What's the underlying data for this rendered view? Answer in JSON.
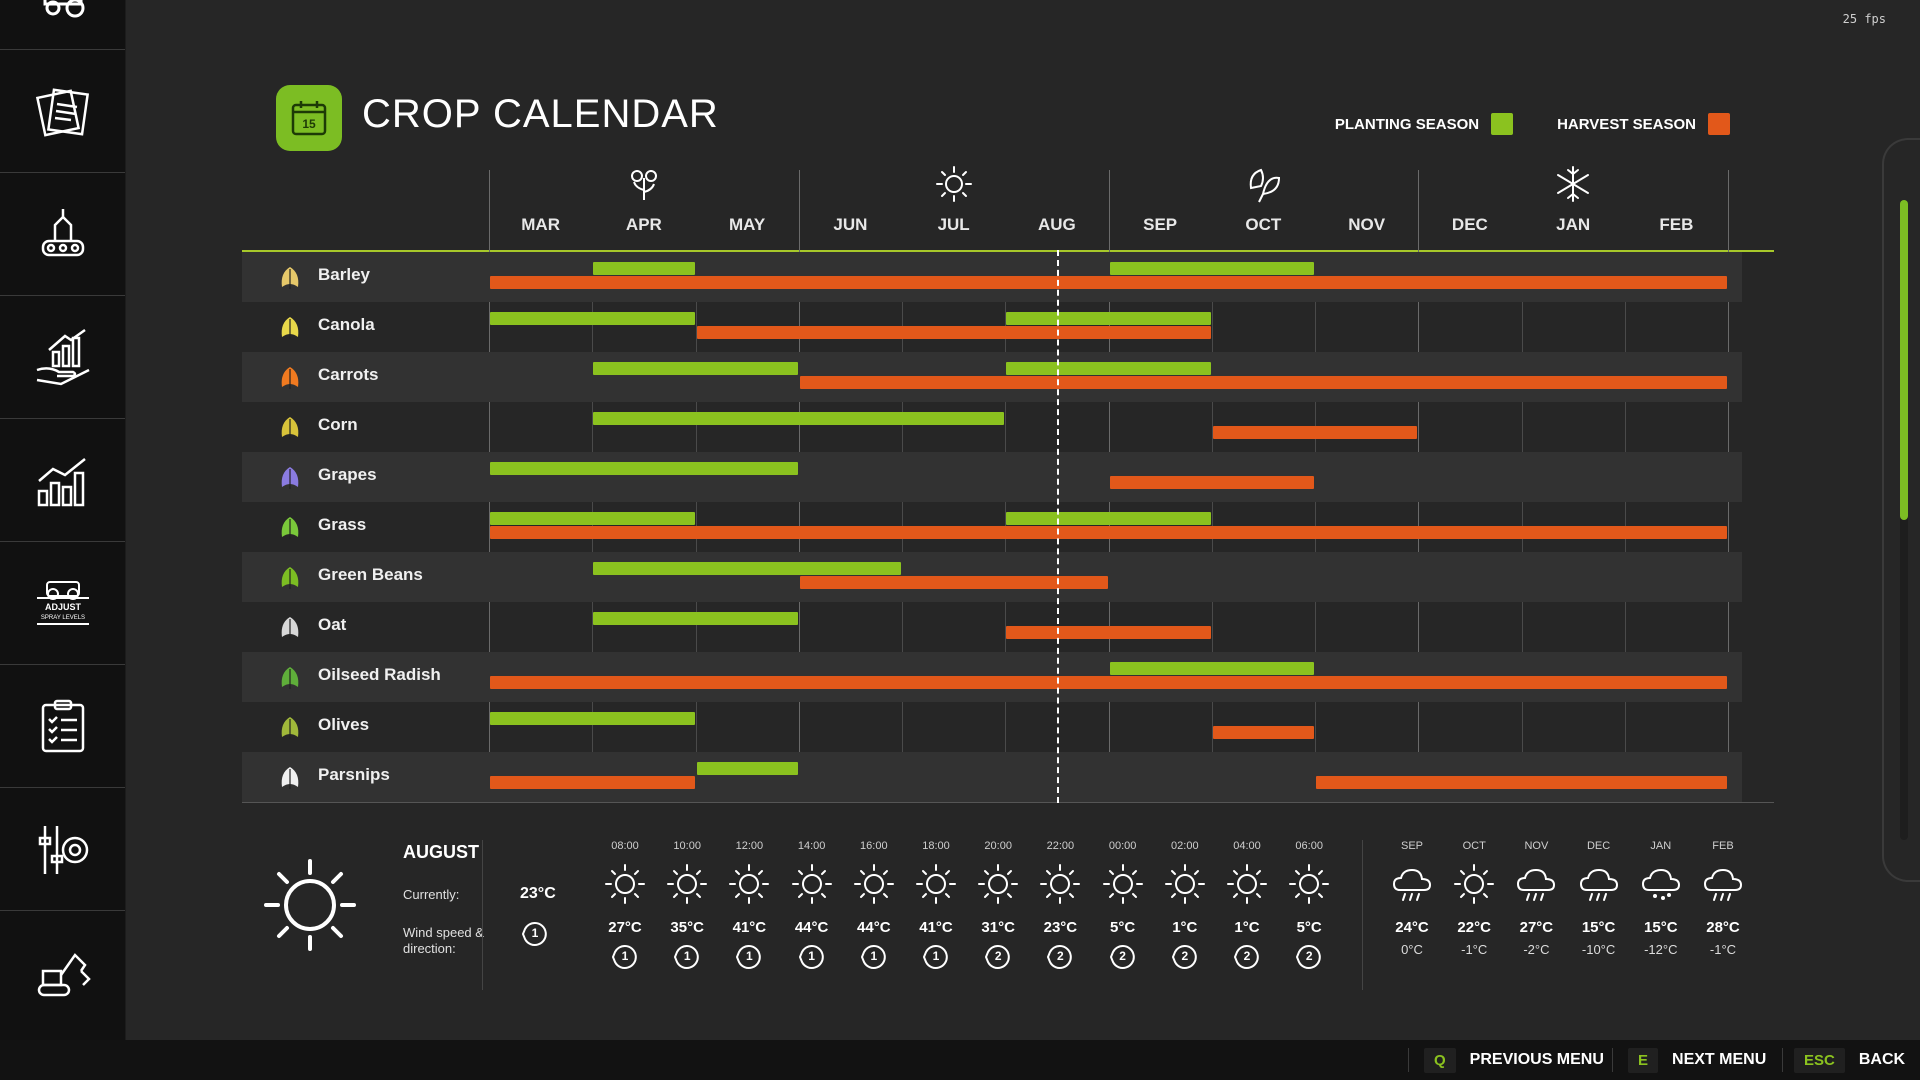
{
  "fps": "25 fps",
  "sidebar": {
    "items": [
      {
        "icon": "tractor-logo-icon"
      },
      {
        "icon": "contracts-icon"
      },
      {
        "icon": "production-icon"
      },
      {
        "icon": "finance-icon"
      },
      {
        "icon": "statistics-icon"
      },
      {
        "icon": "adjust-spray-levels-icon",
        "text": "ADJUST SPRAY LEVELS"
      },
      {
        "icon": "checklist-icon"
      },
      {
        "icon": "settings-icon"
      },
      {
        "icon": "construction-icon"
      }
    ]
  },
  "header": {
    "title": "CROP CALENDAR",
    "calendar_day": "15",
    "legend": {
      "planting": "PLANTING SEASON",
      "harvest": "HARVEST SEASON"
    }
  },
  "colors": {
    "planting": "#8bc21f",
    "harvest": "#e2581a",
    "accent": "#7cbd23"
  },
  "seasons": [
    "spring-flower-icon",
    "summer-sun-icon",
    "autumn-leaf-icon",
    "winter-snowflake-icon"
  ],
  "months": [
    "MAR",
    "APR",
    "MAY",
    "JUN",
    "JUL",
    "AUG",
    "SEP",
    "OCT",
    "NOV",
    "DEC",
    "JAN",
    "FEB"
  ],
  "current_month_fraction": 5.5,
  "crops": [
    {
      "name": "Barley",
      "icon": "barley-icon",
      "planting": [
        [
          1,
          2
        ],
        [
          6,
          8
        ]
      ],
      "harvest": [
        [
          0,
          12
        ]
      ]
    },
    {
      "name": "Canola",
      "icon": "canola-icon",
      "planting": [
        [
          0,
          2
        ],
        [
          5,
          7
        ]
      ],
      "harvest": [
        [
          2,
          7
        ]
      ]
    },
    {
      "name": "Carrots",
      "icon": "carrot-icon",
      "planting": [
        [
          1,
          3
        ],
        [
          5,
          7
        ]
      ],
      "harvest": [
        [
          3,
          12
        ]
      ]
    },
    {
      "name": "Corn",
      "icon": "corn-icon",
      "planting": [
        [
          1,
          5
        ]
      ],
      "harvest": [
        [
          7,
          9
        ]
      ]
    },
    {
      "name": "Grapes",
      "icon": "grapes-icon",
      "planting": [
        [
          0,
          3
        ]
      ],
      "harvest": [
        [
          6,
          8
        ]
      ]
    },
    {
      "name": "Grass",
      "icon": "grass-icon",
      "planting": [
        [
          0,
          2
        ],
        [
          5,
          7
        ]
      ],
      "harvest": [
        [
          0,
          12
        ]
      ]
    },
    {
      "name": "Green Beans",
      "icon": "green-beans-icon",
      "planting": [
        [
          1,
          4
        ]
      ],
      "harvest": [
        [
          3,
          6
        ]
      ]
    },
    {
      "name": "Oat",
      "icon": "oat-icon",
      "planting": [
        [
          1,
          3
        ]
      ],
      "harvest": [
        [
          5,
          7
        ]
      ]
    },
    {
      "name": "Oilseed Radish",
      "icon": "oilseed-radish-icon",
      "planting": [
        [
          6,
          8
        ]
      ],
      "harvest": [
        [
          0,
          12
        ]
      ]
    },
    {
      "name": "Olives",
      "icon": "olives-icon",
      "planting": [
        [
          0,
          2
        ]
      ],
      "harvest": [
        [
          7,
          8
        ]
      ]
    },
    {
      "name": "Parsnips",
      "icon": "parsnip-icon",
      "planting": [
        [
          2,
          3
        ]
      ],
      "harvest": [
        [
          0,
          2
        ],
        [
          8,
          12
        ]
      ]
    }
  ],
  "weather": {
    "month": "AUGUST",
    "current_label": "Currently:",
    "current_temp": "23°C",
    "wind_label": "Wind speed & direction:",
    "wind_value": "1",
    "hourly": [
      {
        "time": "08:00",
        "temp": "27°C",
        "wind": "1"
      },
      {
        "time": "10:00",
        "temp": "35°C",
        "wind": "1"
      },
      {
        "time": "12:00",
        "temp": "41°C",
        "wind": "1"
      },
      {
        "time": "14:00",
        "temp": "44°C",
        "wind": "1"
      },
      {
        "time": "16:00",
        "temp": "44°C",
        "wind": "1"
      },
      {
        "time": "18:00",
        "temp": "41°C",
        "wind": "1"
      },
      {
        "time": "20:00",
        "temp": "31°C",
        "wind": "2"
      },
      {
        "time": "22:00",
        "temp": "23°C",
        "wind": "2"
      },
      {
        "time": "00:00",
        "temp": "5°C",
        "wind": "2"
      },
      {
        "time": "02:00",
        "temp": "1°C",
        "wind": "2"
      },
      {
        "time": "04:00",
        "temp": "1°C",
        "wind": "2"
      },
      {
        "time": "06:00",
        "temp": "5°C",
        "wind": "2"
      }
    ],
    "forecast": [
      {
        "month": "SEP",
        "icon": "rain-icon",
        "high": "24°C",
        "low": "0°C"
      },
      {
        "month": "OCT",
        "icon": "sun-icon",
        "high": "22°C",
        "low": "-1°C"
      },
      {
        "month": "NOV",
        "icon": "rain-icon",
        "high": "27°C",
        "low": "-2°C"
      },
      {
        "month": "DEC",
        "icon": "rain-icon",
        "high": "15°C",
        "low": "-10°C"
      },
      {
        "month": "JAN",
        "icon": "snow-icon",
        "high": "15°C",
        "low": "-12°C"
      },
      {
        "month": "FEB",
        "icon": "rain-icon",
        "high": "28°C",
        "low": "-1°C"
      }
    ]
  },
  "footer": {
    "prev_key": "Q",
    "prev_label": "PREVIOUS MENU",
    "next_key": "E",
    "next_label": "NEXT MENU",
    "back_key": "ESC",
    "back_label": "BACK"
  }
}
